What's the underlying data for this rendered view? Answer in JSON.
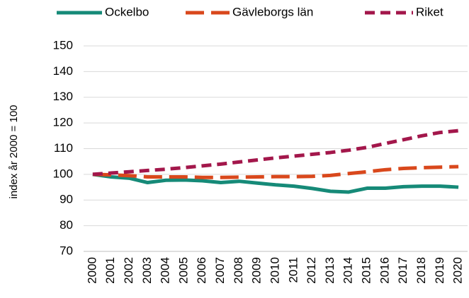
{
  "chart_data": {
    "type": "line",
    "y_label": "index år 2000 = 100",
    "categories": [
      "2000",
      "2001",
      "2002",
      "2003",
      "2004",
      "2005",
      "2006",
      "2007",
      "2008",
      "2009",
      "2010",
      "2011",
      "2012",
      "2013",
      "2014",
      "2015",
      "2016",
      "2017",
      "2018",
      "2019",
      "2020"
    ],
    "series": [
      {
        "name": "Ockelbo",
        "color": "#168a78",
        "dash": "solid",
        "values": [
          100,
          99,
          98.5,
          96.8,
          97.7,
          97.8,
          97.5,
          96.8,
          97.3,
          96.6,
          95.9,
          95.4,
          94.5,
          93.4,
          93.1,
          94.6,
          94.6,
          95.2,
          95.4,
          95.4,
          95.0
        ]
      },
      {
        "name": "Gävleborgs län",
        "color": "#d9481c",
        "dash": "long-dash",
        "values": [
          100,
          99.8,
          99.5,
          99.0,
          99.0,
          99.0,
          98.8,
          98.8,
          98.9,
          99.0,
          99.1,
          99.1,
          99.2,
          99.6,
          100.3,
          101.0,
          101.8,
          102.3,
          102.6,
          102.8,
          103.0
        ]
      },
      {
        "name": "Riket",
        "color": "#a3174b",
        "dash": "dash",
        "values": [
          100,
          100.5,
          101,
          101.5,
          102,
          102.6,
          103.3,
          104,
          104.8,
          105.6,
          106.4,
          107.1,
          107.8,
          108.5,
          109.4,
          110.5,
          112,
          113.5,
          115,
          116.3,
          117
        ]
      }
    ],
    "ylim": [
      70,
      150
    ],
    "yticks": [
      70,
      80,
      90,
      100,
      110,
      120,
      130,
      140,
      150
    ],
    "grid": true,
    "legend": "top"
  }
}
